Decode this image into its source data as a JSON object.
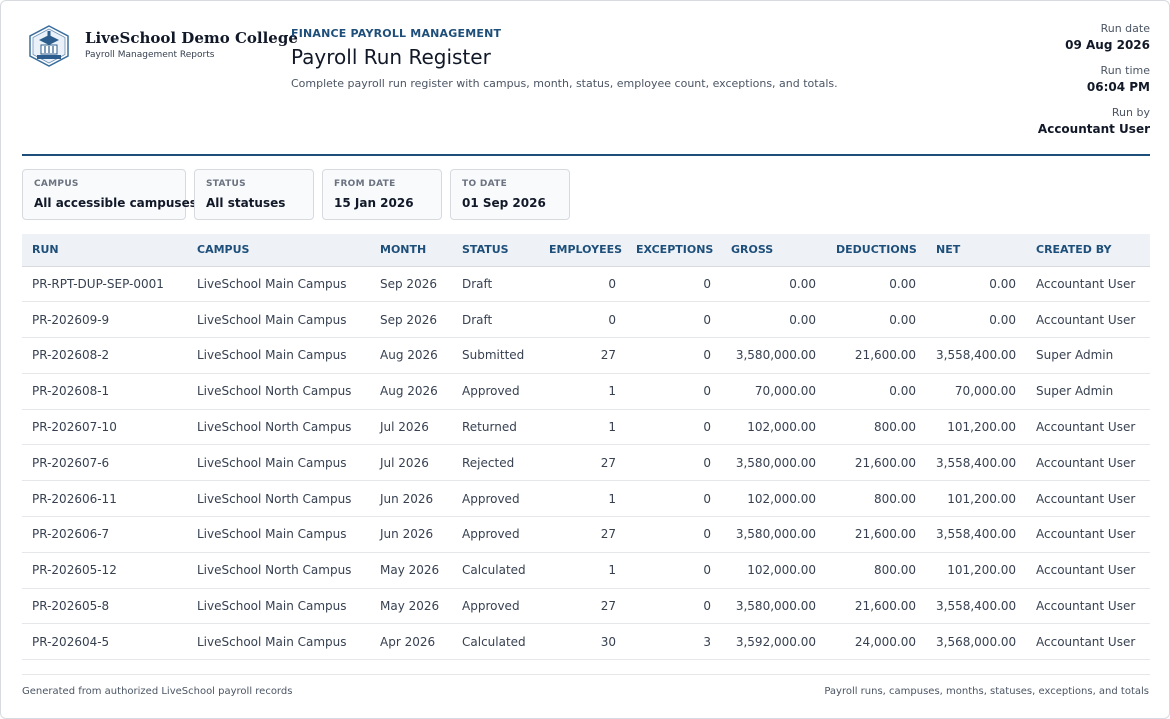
{
  "org": {
    "name": "LiveSchool Demo College",
    "subtitle": "Payroll Management Reports",
    "logo_icon": "college-crest-icon"
  },
  "report": {
    "section": "FINANCE PAYROLL MANAGEMENT",
    "title": "Payroll Run Register",
    "description": "Complete payroll run register with campus, month, status, employee count, exceptions, and totals."
  },
  "meta": {
    "run_date_label": "Run date",
    "run_date": "09 Aug 2026",
    "run_time_label": "Run time",
    "run_time": "06:04 PM",
    "run_by_label": "Run by",
    "run_by": "Accountant User"
  },
  "filters": [
    {
      "label": "CAMPUS",
      "value": "All accessible campuses"
    },
    {
      "label": "STATUS",
      "value": "All statuses"
    },
    {
      "label": "FROM DATE",
      "value": "15 Jan 2026"
    },
    {
      "label": "TO DATE",
      "value": "01 Sep 2026"
    }
  ],
  "table": {
    "columns": [
      "RUN",
      "CAMPUS",
      "MONTH",
      "STATUS",
      "EMPLOYEES",
      "EXCEPTIONS",
      "GROSS",
      "DEDUCTIONS",
      "NET",
      "CREATED BY"
    ],
    "rows": [
      [
        "PR-RPT-DUP-SEP-0001",
        "LiveSchool Main Campus",
        "Sep 2026",
        "Draft",
        "0",
        "0",
        "0.00",
        "0.00",
        "0.00",
        "Accountant User"
      ],
      [
        "PR-202609-9",
        "LiveSchool Main Campus",
        "Sep 2026",
        "Draft",
        "0",
        "0",
        "0.00",
        "0.00",
        "0.00",
        "Accountant User"
      ],
      [
        "PR-202608-2",
        "LiveSchool Main Campus",
        "Aug 2026",
        "Submitted",
        "27",
        "0",
        "3,580,000.00",
        "21,600.00",
        "3,558,400.00",
        "Super Admin"
      ],
      [
        "PR-202608-1",
        "LiveSchool North Campus",
        "Aug 2026",
        "Approved",
        "1",
        "0",
        "70,000.00",
        "0.00",
        "70,000.00",
        "Super Admin"
      ],
      [
        "PR-202607-10",
        "LiveSchool North Campus",
        "Jul 2026",
        "Returned",
        "1",
        "0",
        "102,000.00",
        "800.00",
        "101,200.00",
        "Accountant User"
      ],
      [
        "PR-202607-6",
        "LiveSchool Main Campus",
        "Jul 2026",
        "Rejected",
        "27",
        "0",
        "3,580,000.00",
        "21,600.00",
        "3,558,400.00",
        "Accountant User"
      ],
      [
        "PR-202606-11",
        "LiveSchool North Campus",
        "Jun 2026",
        "Approved",
        "1",
        "0",
        "102,000.00",
        "800.00",
        "101,200.00",
        "Accountant User"
      ],
      [
        "PR-202606-7",
        "LiveSchool Main Campus",
        "Jun 2026",
        "Approved",
        "27",
        "0",
        "3,580,000.00",
        "21,600.00",
        "3,558,400.00",
        "Accountant User"
      ],
      [
        "PR-202605-12",
        "LiveSchool North Campus",
        "May 2026",
        "Calculated",
        "1",
        "0",
        "102,000.00",
        "800.00",
        "101,200.00",
        "Accountant User"
      ],
      [
        "PR-202605-8",
        "LiveSchool Main Campus",
        "May 2026",
        "Approved",
        "27",
        "0",
        "3,580,000.00",
        "21,600.00",
        "3,558,400.00",
        "Accountant User"
      ],
      [
        "PR-202604-5",
        "LiveSchool Main Campus",
        "Apr 2026",
        "Calculated",
        "30",
        "3",
        "3,592,000.00",
        "24,000.00",
        "3,568,000.00",
        "Accountant User"
      ]
    ]
  },
  "footer": {
    "left": "Generated from authorized LiveSchool payroll records",
    "right": "Payroll runs, campuses, months, statuses, exceptions, and totals"
  },
  "colors": {
    "accent": "#1e4f7a",
    "header_bg": "#eef2f6"
  }
}
